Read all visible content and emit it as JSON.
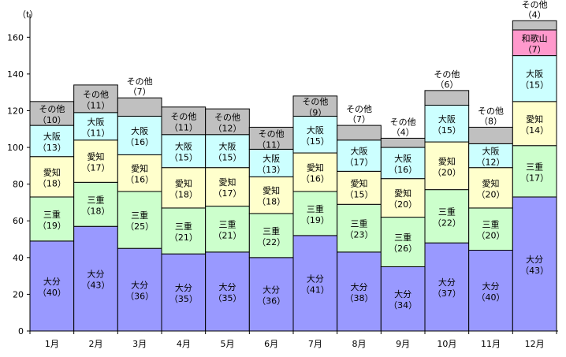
{
  "chart_data": {
    "type": "bar",
    "stacked": true,
    "ylabel": "（t）",
    "ylim": [
      0,
      170
    ],
    "yticks": [
      0,
      20,
      40,
      60,
      80,
      100,
      120,
      140,
      160
    ],
    "grid": false,
    "categories": [
      "1月",
      "2月",
      "3月",
      "4月",
      "5月",
      "6月",
      "7月",
      "8月",
      "9月",
      "10月",
      "11月",
      "12月"
    ],
    "series": [
      {
        "name": "大分",
        "color": "#9999FF",
        "values": [
          49,
          57,
          45,
          42,
          43,
          40,
          52,
          43,
          35,
          48,
          44,
          73
        ],
        "labels": [
          "（40）",
          "（43）",
          "（36）",
          "（35）",
          "（35）",
          "（36）",
          "（41）",
          "（38）",
          "（34）",
          "（37）",
          "（40）",
          "（43）"
        ]
      },
      {
        "name": "三重",
        "color": "#CCFFCC",
        "values": [
          24,
          24,
          31,
          25,
          25,
          24,
          24,
          26,
          27,
          29,
          23,
          28
        ],
        "labels": [
          "（19）",
          "（18）",
          "（25）",
          "（21）",
          "（21）",
          "（22）",
          "（19）",
          "（23）",
          "（26）",
          "（22）",
          "（20）",
          "（17）"
        ]
      },
      {
        "name": "愛知",
        "color": "#FFFFCC",
        "values": [
          22,
          23,
          20,
          22,
          21,
          20,
          21,
          18,
          21,
          26,
          22,
          24
        ],
        "labels": [
          "（18）",
          "（17）",
          "（16）",
          "（18）",
          "（17）",
          "（18）",
          "（16）",
          "（15）",
          "（20）",
          "（20）",
          "（20）",
          "（14）"
        ]
      },
      {
        "name": "大阪",
        "color": "#CCFFFF",
        "values": [
          17,
          15,
          21,
          18,
          18,
          15,
          20,
          17,
          17,
          20,
          13,
          25
        ],
        "labels": [
          "（13）",
          "（11）",
          "（16）",
          "（15）",
          "（15）",
          "（13）",
          "（15）",
          "（17）",
          "（16）",
          "（15）",
          "（12）",
          "（15）"
        ]
      },
      {
        "name": "和歌山",
        "color": "#FF99CC",
        "values": [
          0,
          0,
          0,
          0,
          0,
          0,
          0,
          0,
          0,
          0,
          0,
          14
        ],
        "labels": [
          "",
          "",
          "",
          "",
          "",
          "",
          "",
          "",
          "",
          "",
          "",
          "（7）"
        ]
      },
      {
        "name": "その他",
        "color": "#C0C0C0",
        "values": [
          13,
          15,
          10,
          15,
          14,
          12,
          11,
          8,
          5,
          8,
          9,
          5
        ],
        "labels": [
          "（10）",
          "（11）",
          "（7）",
          "（11）",
          "（12）",
          "（11）",
          "（9）",
          "（7）",
          "（4）",
          "（6）",
          "（8）",
          "（4）"
        ],
        "labels_above": [
          false,
          false,
          true,
          false,
          false,
          false,
          false,
          true,
          true,
          true,
          true,
          true
        ]
      }
    ]
  }
}
